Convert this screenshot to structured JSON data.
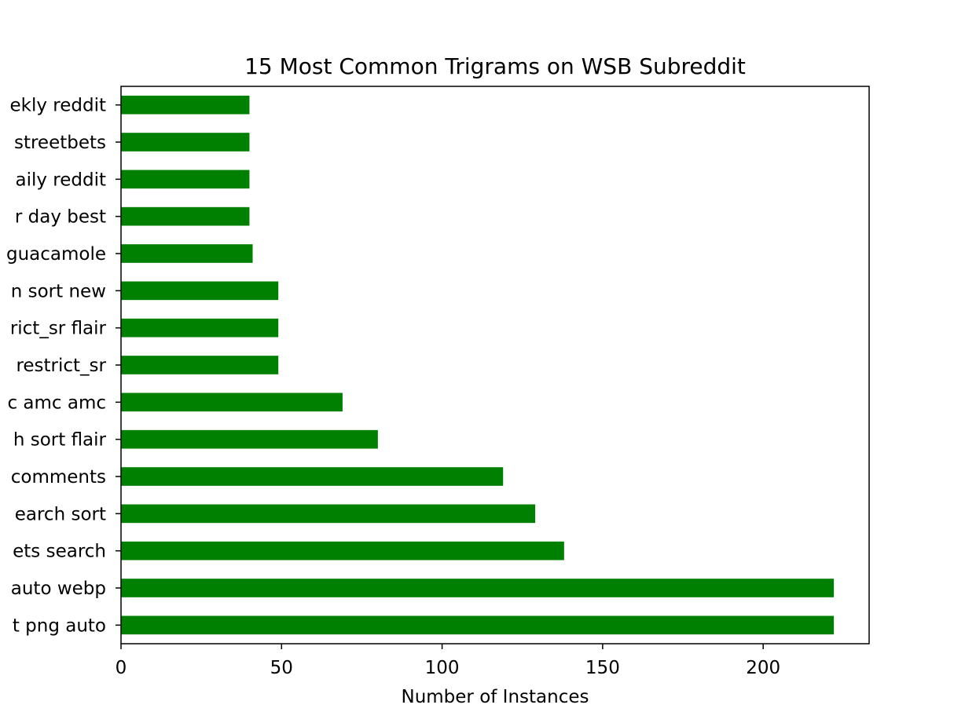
{
  "chart_data": {
    "type": "bar",
    "orientation": "horizontal",
    "title": "15 Most Common Trigrams on WSB Subreddit",
    "xlabel": "Number of Instances",
    "ylabel": "",
    "xlim": [
      0,
      233
    ],
    "x_ticks": [
      0,
      50,
      100,
      150,
      200
    ],
    "x_tick_labels": [
      "0",
      "50",
      "100",
      "150",
      "200"
    ],
    "grid": false,
    "bar_color": "#008000",
    "categories": [
      "t png auto",
      "auto webp",
      "ets search",
      "earch sort",
      "comments",
      "h sort flair",
      "c amc amc",
      "restrict_sr",
      "rict_sr flair",
      "n sort new",
      "guacamole",
      "r day best",
      "aily reddit",
      "streetbets",
      "ekly reddit"
    ],
    "values": [
      222,
      222,
      138,
      129,
      119,
      80,
      69,
      49,
      49,
      49,
      41,
      40,
      40,
      40,
      40
    ]
  }
}
